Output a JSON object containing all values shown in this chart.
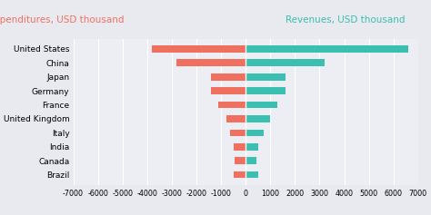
{
  "countries": [
    "United States",
    "China",
    "Japan",
    "Germany",
    "France",
    "United Kingdom",
    "Italy",
    "India",
    "Canada",
    "Brazil"
  ],
  "expenditures": [
    -3800,
    -2800,
    -1400,
    -1400,
    -1100,
    -800,
    -650,
    -500,
    -450,
    -500
  ],
  "revenues": [
    6600,
    3200,
    1600,
    1600,
    1300,
    1000,
    750,
    500,
    450,
    500
  ],
  "exp_color": "#F07060",
  "rev_color": "#3BBFB0",
  "title_exp": "Expenditures, USD thousand",
  "title_rev": "Revenues, USD thousand",
  "xlim": [
    -7000,
    7000
  ],
  "xticks": [
    -7000,
    -6000,
    -5000,
    -4000,
    -3000,
    -2000,
    -1000,
    0,
    1000,
    2000,
    3000,
    4000,
    5000,
    6000,
    7000
  ],
  "xtick_labels": [
    "-7000",
    "-6000",
    "-5000",
    "-4000",
    "-3000",
    "-2000",
    "-1000",
    "0",
    "1000",
    "2000",
    "3000",
    "4000",
    "5000",
    "6000",
    "7000"
  ],
  "bg_color": "#E8EAF0",
  "plot_bg_color": "#ECEEF4",
  "bar_height": 0.5,
  "title_exp_color": "#F07060",
  "title_rev_color": "#3BBFB0",
  "title_fontsize": 7.5,
  "label_fontsize": 6.5,
  "tick_fontsize": 5.8
}
